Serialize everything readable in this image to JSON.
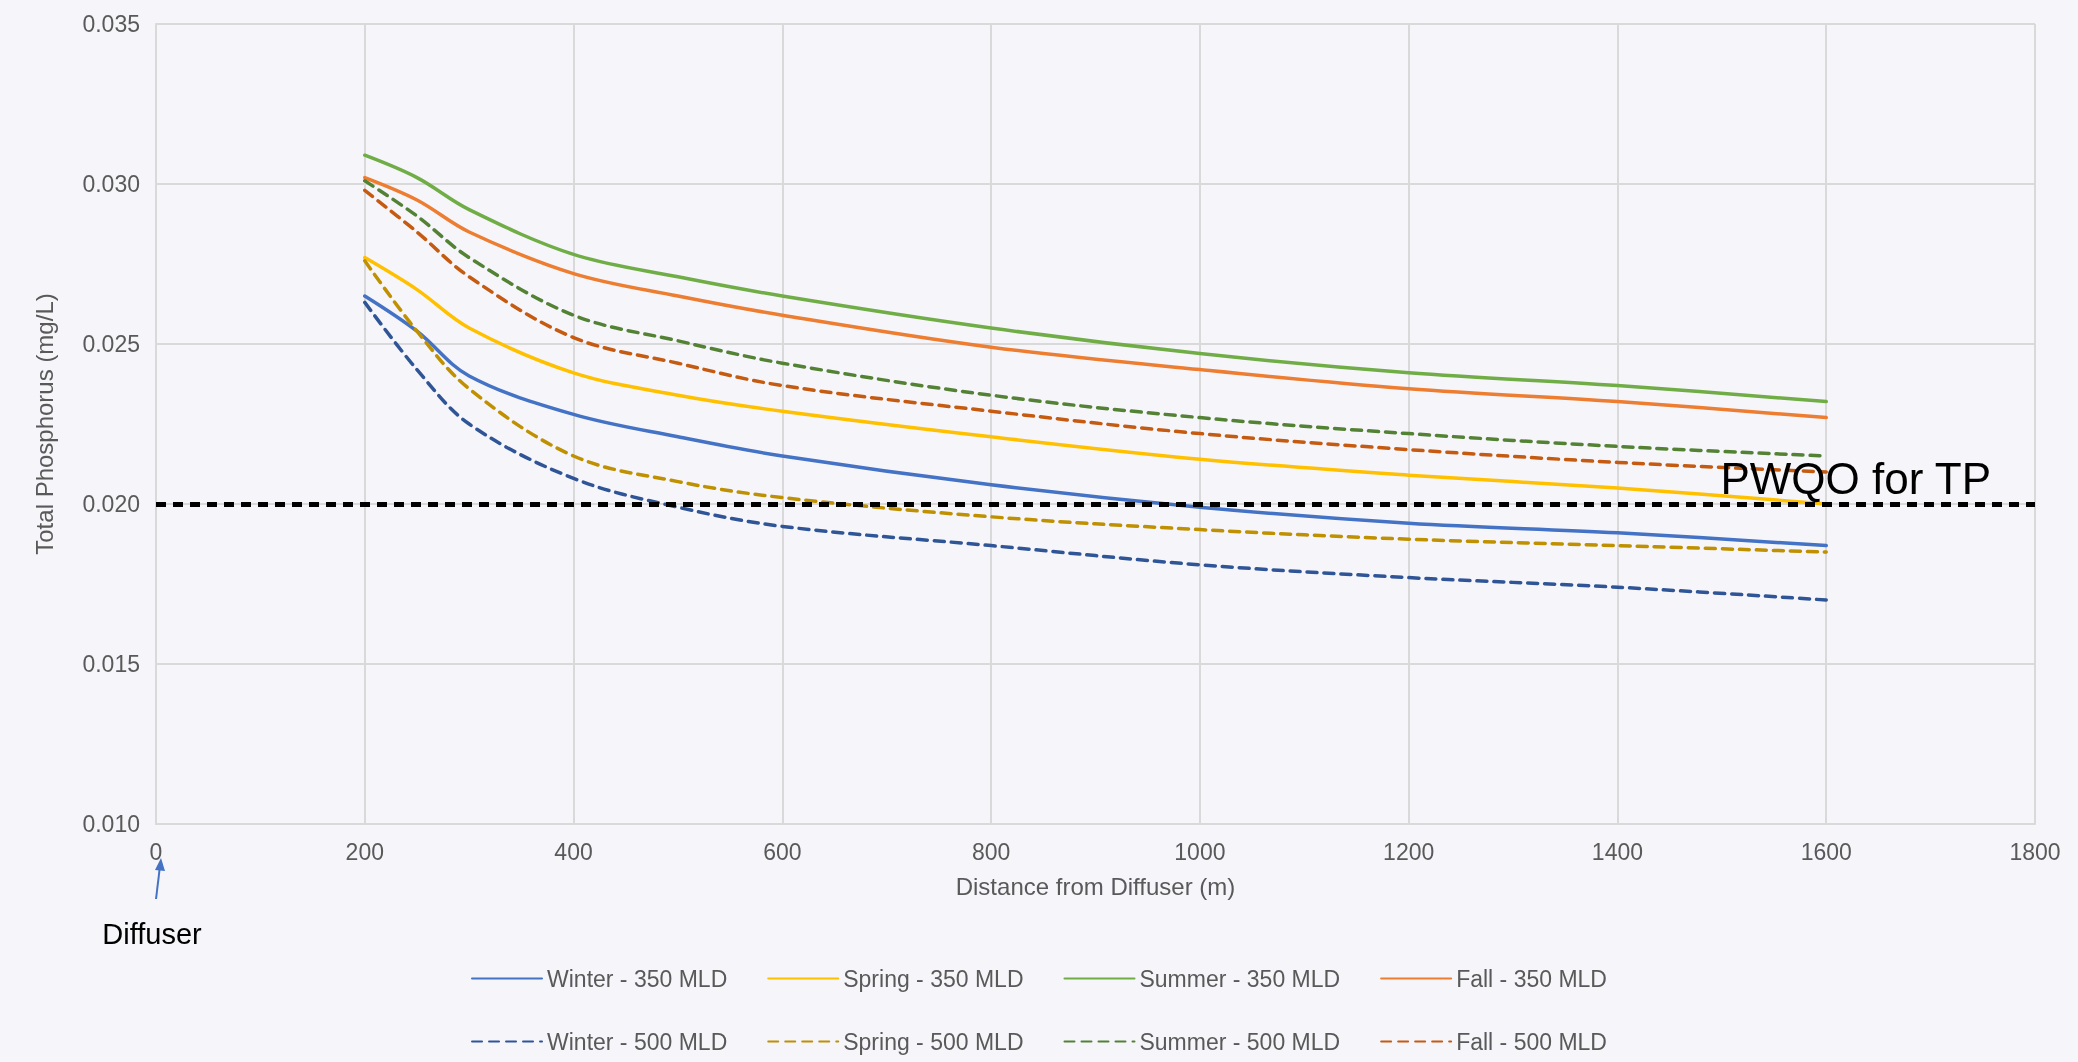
{
  "chart_data": {
    "type": "line",
    "xlabel": "Distance from Diffuser (m)",
    "ylabel": "Total Phosphorus (mg/L)",
    "x": [
      200,
      250,
      300,
      400,
      500,
      600,
      800,
      1000,
      1200,
      1400,
      1600
    ],
    "series": [
      {
        "name": "Winter - 350 MLD",
        "color": "#4472c4",
        "line_style": "solid",
        "values": [
          0.0265,
          0.0254,
          0.024,
          0.0228,
          0.0221,
          0.0215,
          0.0206,
          0.0199,
          0.0194,
          0.0191,
          0.0187
        ]
      },
      {
        "name": "Spring - 350 MLD",
        "color": "#ffc000",
        "line_style": "solid",
        "values": [
          0.0277,
          0.0267,
          0.0255,
          0.0241,
          0.0234,
          0.0229,
          0.0221,
          0.0214,
          0.0209,
          0.0205,
          0.02
        ]
      },
      {
        "name": "Summer - 350 MLD",
        "color": "#70ad47",
        "line_style": "solid",
        "values": [
          0.0309,
          0.0302,
          0.0292,
          0.0278,
          0.0271,
          0.0265,
          0.0255,
          0.0247,
          0.0241,
          0.0237,
          0.0232
        ]
      },
      {
        "name": "Fall - 350 MLD",
        "color": "#ed7d31",
        "line_style": "solid",
        "values": [
          0.0302,
          0.0295,
          0.0285,
          0.0272,
          0.0265,
          0.0259,
          0.0249,
          0.0242,
          0.0236,
          0.0232,
          0.0227
        ]
      },
      {
        "name": "Winter - 500 MLD",
        "color": "#2f5597",
        "line_style": "dashed",
        "values": [
          0.0263,
          0.0242,
          0.0225,
          0.0208,
          0.0199,
          0.0193,
          0.0187,
          0.0181,
          0.0177,
          0.0174,
          0.017
        ]
      },
      {
        "name": "Spring - 500 MLD",
        "color": "#bf9000",
        "line_style": "dashed",
        "values": [
          0.0276,
          0.0254,
          0.0236,
          0.0215,
          0.0207,
          0.0202,
          0.0196,
          0.0192,
          0.0189,
          0.0187,
          0.0185
        ]
      },
      {
        "name": "Summer - 500 MLD",
        "color": "#548235",
        "line_style": "dashed",
        "values": [
          0.0301,
          0.029,
          0.0277,
          0.0259,
          0.0251,
          0.0244,
          0.0234,
          0.0227,
          0.0222,
          0.0218,
          0.0215
        ]
      },
      {
        "name": "Fall - 500 MLD",
        "color": "#c55a11",
        "line_style": "dashed",
        "values": [
          0.0298,
          0.0285,
          0.0271,
          0.0252,
          0.0244,
          0.0237,
          0.0229,
          0.0222,
          0.0217,
          0.0213,
          0.021
        ]
      }
    ],
    "xlim": [
      0,
      1800
    ],
    "xticks": [
      0,
      200,
      400,
      600,
      800,
      1000,
      1200,
      1400,
      1600,
      1800
    ],
    "ylim": [
      0.01,
      0.035
    ],
    "yticks": [
      {
        "value": 0.01,
        "label": "0.010"
      },
      {
        "value": 0.015,
        "label": "0.015"
      },
      {
        "value": 0.02,
        "label": "0.020"
      },
      {
        "value": 0.025,
        "label": "0.025"
      },
      {
        "value": 0.03,
        "label": "0.030"
      },
      {
        "value": 0.035,
        "label": "0.035"
      }
    ],
    "ref_lines": [
      {
        "axis": "y",
        "value": 0.02,
        "label": "PWQO for TP",
        "color": "#000000",
        "line_style": "dashed"
      }
    ],
    "annotations": [
      "Diffuser"
    ],
    "grid": true,
    "legend": "bottom",
    "marker": "none"
  }
}
